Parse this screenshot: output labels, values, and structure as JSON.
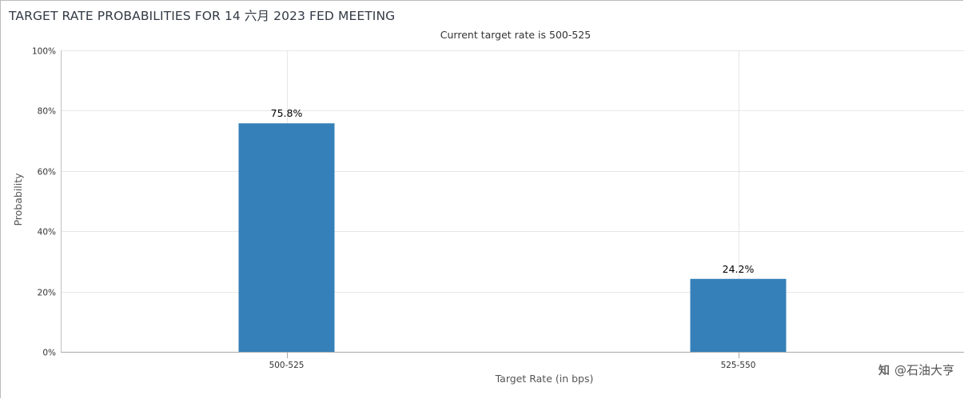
{
  "chart_data": {
    "type": "bar",
    "title": "TARGET RATE PROBABILITIES FOR 14 六月 2023 FED MEETING",
    "subtitle": "Current target rate is 500-525",
    "xlabel": "Target Rate (in bps)",
    "ylabel": "Probability",
    "categories": [
      "500-525",
      "525-550"
    ],
    "values": [
      75.8,
      24.2
    ],
    "data_labels": [
      "75.8%",
      "24.2%"
    ],
    "ylim": [
      0,
      100
    ],
    "yticks": [
      0,
      20,
      40,
      60,
      80,
      100
    ],
    "ytick_labels": [
      "0%",
      "20%",
      "40%",
      "60%",
      "80%",
      "100%"
    ],
    "grid": true,
    "legend": "none",
    "bar_color": "#3580b8"
  },
  "watermark": {
    "icon": "zhihu-icon",
    "text": "@石油大亨"
  }
}
